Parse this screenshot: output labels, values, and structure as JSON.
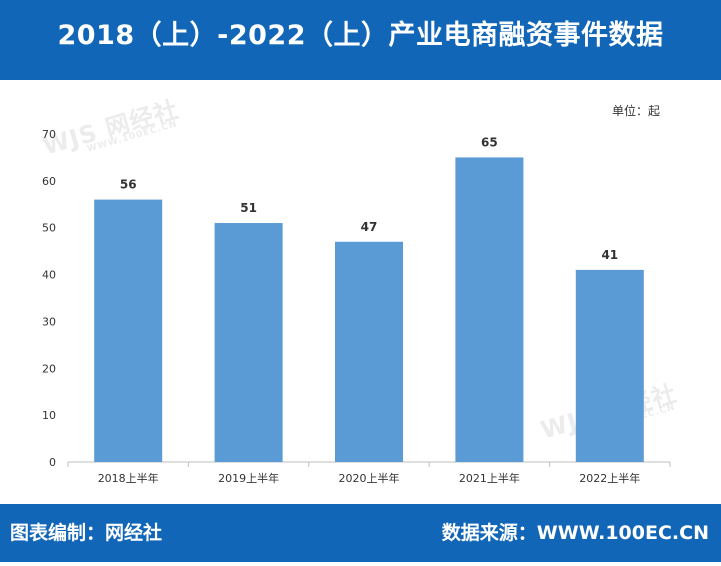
{
  "header": {
    "title": "2018（上）-2022（上）产业电商融资事件数据"
  },
  "chart_note": {
    "unit": "单位：起"
  },
  "watermark": {
    "brand": "WJS 网经社",
    "site": "WWW.100EC.CN"
  },
  "footer": {
    "left": "图表编制：网经社",
    "right": "数据来源：WWW.100EC.CN"
  },
  "colors": {
    "header": "#1266b7",
    "footer": "#1266b7",
    "bar": "#5b9bd5",
    "axis": "#bfbfbf",
    "grid": "#d9d9d9",
    "text": "#333333"
  },
  "chart_data": {
    "type": "bar",
    "categories": [
      "2018上半年",
      "2019上半年",
      "2020上半年",
      "2021上半年",
      "2022上半年"
    ],
    "values": [
      56,
      51,
      47,
      65,
      41
    ],
    "title": "",
    "xlabel": "",
    "ylabel": "",
    "ylim": [
      0,
      70
    ],
    "yticks": [
      0,
      10,
      20,
      30,
      40,
      50,
      60,
      70
    ],
    "grid": false,
    "data_labels": true
  }
}
